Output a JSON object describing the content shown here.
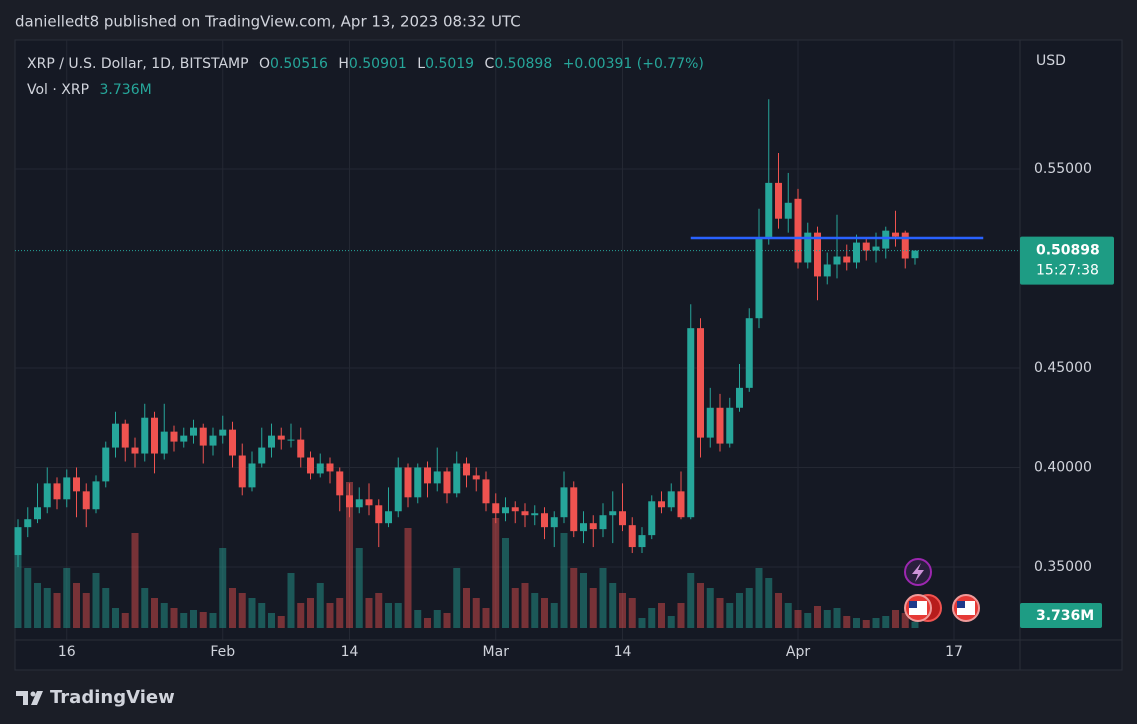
{
  "header": {
    "publisher": "danielledt8 published on TradingView.com, Apr 13, 2023 08:32 UTC",
    "brand": "TradingView"
  },
  "chart_data": {
    "type": "candlestick",
    "symbol": "XRP / U.S. Dollar, 1D, BITSTAMP",
    "ohlc_keys": [
      "O",
      "H",
      "L",
      "C"
    ],
    "change_label": "+0.00391 (+0.77%)",
    "volume_title": "Vol · XRP",
    "last_volume_label": "3.736M",
    "countdown": "15:27:38",
    "currency": "USD",
    "up_color": "#26a69a",
    "down_color": "#ef5350",
    "categories": [
      "2023-01-11",
      "2023-01-12",
      "2023-01-13",
      "2023-01-14",
      "2023-01-15",
      "2023-01-16",
      "2023-01-17",
      "2023-01-18",
      "2023-01-19",
      "2023-01-20",
      "2023-01-21",
      "2023-01-22",
      "2023-01-23",
      "2023-01-24",
      "2023-01-25",
      "2023-01-26",
      "2023-01-27",
      "2023-01-28",
      "2023-01-29",
      "2023-01-30",
      "2023-01-31",
      "2023-02-01",
      "2023-02-02",
      "2023-02-03",
      "2023-02-04",
      "2023-02-05",
      "2023-02-06",
      "2023-02-07",
      "2023-02-08",
      "2023-02-09",
      "2023-02-10",
      "2023-02-11",
      "2023-02-12",
      "2023-02-13",
      "2023-02-14",
      "2023-02-15",
      "2023-02-16",
      "2023-02-17",
      "2023-02-18",
      "2023-02-19",
      "2023-02-20",
      "2023-02-21",
      "2023-02-22",
      "2023-02-23",
      "2023-02-24",
      "2023-02-25",
      "2023-02-26",
      "2023-02-27",
      "2023-02-28",
      "2023-03-01",
      "2023-03-02",
      "2023-03-03",
      "2023-03-04",
      "2023-03-05",
      "2023-03-06",
      "2023-03-07",
      "2023-03-08",
      "2023-03-09",
      "2023-03-10",
      "2023-03-11",
      "2023-03-12",
      "2023-03-13",
      "2023-03-14",
      "2023-03-15",
      "2023-03-16",
      "2023-03-17",
      "2023-03-18",
      "2023-03-19",
      "2023-03-20",
      "2023-03-21",
      "2023-03-22",
      "2023-03-23",
      "2023-03-24",
      "2023-03-25",
      "2023-03-26",
      "2023-03-27",
      "2023-03-28",
      "2023-03-29",
      "2023-03-30",
      "2023-03-31",
      "2023-04-01",
      "2023-04-02",
      "2023-04-03",
      "2023-04-04",
      "2023-04-05",
      "2023-04-06",
      "2023-04-07",
      "2023-04-08",
      "2023-04-09",
      "2023-04-10",
      "2023-04-11",
      "2023-04-12",
      "2023-04-13"
    ],
    "open": [
      0.356,
      0.37,
      0.374,
      0.38,
      0.392,
      0.384,
      0.395,
      0.388,
      0.379,
      0.393,
      0.41,
      0.422,
      0.41,
      0.407,
      0.425,
      0.407,
      0.418,
      0.413,
      0.416,
      0.42,
      0.411,
      0.416,
      0.419,
      0.406,
      0.39,
      0.402,
      0.41,
      0.416,
      0.414,
      0.414,
      0.405,
      0.397,
      0.402,
      0.398,
      0.386,
      0.38,
      0.384,
      0.381,
      0.372,
      0.378,
      0.4,
      0.385,
      0.4,
      0.392,
      0.398,
      0.387,
      0.402,
      0.396,
      0.394,
      0.382,
      0.377,
      0.38,
      0.378,
      0.376,
      0.377,
      0.37,
      0.375,
      0.39,
      0.368,
      0.372,
      0.369,
      0.376,
      0.378,
      0.371,
      0.36,
      0.366,
      0.383,
      0.38,
      0.388,
      0.375,
      0.47,
      0.415,
      0.43,
      0.412,
      0.43,
      0.44,
      0.475,
      0.515,
      0.543,
      0.525,
      0.535,
      0.503,
      0.518,
      0.496,
      0.502,
      0.506,
      0.503,
      0.513,
      0.509,
      0.51,
      0.518,
      0.518,
      0.50516
    ],
    "high": [
      0.374,
      0.38,
      0.392,
      0.4,
      0.395,
      0.399,
      0.4,
      0.392,
      0.396,
      0.413,
      0.428,
      0.424,
      0.415,
      0.432,
      0.428,
      0.432,
      0.421,
      0.42,
      0.424,
      0.422,
      0.42,
      0.426,
      0.423,
      0.412,
      0.408,
      0.42,
      0.422,
      0.42,
      0.422,
      0.42,
      0.408,
      0.407,
      0.405,
      0.4,
      0.392,
      0.39,
      0.392,
      0.384,
      0.39,
      0.405,
      0.402,
      0.402,
      0.403,
      0.41,
      0.4,
      0.408,
      0.405,
      0.4,
      0.398,
      0.387,
      0.385,
      0.383,
      0.382,
      0.381,
      0.38,
      0.378,
      0.398,
      0.393,
      0.378,
      0.376,
      0.382,
      0.388,
      0.392,
      0.375,
      0.37,
      0.386,
      0.388,
      0.392,
      0.398,
      0.482,
      0.475,
      0.44,
      0.437,
      0.435,
      0.452,
      0.48,
      0.53,
      0.585,
      0.558,
      0.548,
      0.54,
      0.523,
      0.521,
      0.508,
      0.527,
      0.512,
      0.517,
      0.515,
      0.518,
      0.521,
      0.529,
      0.519,
      0.50901
    ],
    "low": [
      0.35,
      0.365,
      0.372,
      0.377,
      0.379,
      0.38,
      0.375,
      0.37,
      0.377,
      0.39,
      0.405,
      0.403,
      0.4,
      0.403,
      0.397,
      0.404,
      0.408,
      0.41,
      0.412,
      0.402,
      0.406,
      0.412,
      0.4,
      0.386,
      0.388,
      0.4,
      0.405,
      0.409,
      0.41,
      0.4,
      0.394,
      0.395,
      0.392,
      0.378,
      0.375,
      0.377,
      0.376,
      0.36,
      0.37,
      0.375,
      0.38,
      0.382,
      0.385,
      0.388,
      0.382,
      0.385,
      0.39,
      0.388,
      0.378,
      0.372,
      0.373,
      0.372,
      0.37,
      0.371,
      0.364,
      0.36,
      0.372,
      0.365,
      0.362,
      0.36,
      0.365,
      0.362,
      0.368,
      0.357,
      0.357,
      0.364,
      0.377,
      0.378,
      0.374,
      0.374,
      0.405,
      0.41,
      0.408,
      0.41,
      0.428,
      0.438,
      0.47,
      0.512,
      0.52,
      0.518,
      0.5,
      0.5,
      0.484,
      0.492,
      0.495,
      0.499,
      0.5,
      0.504,
      0.503,
      0.505,
      0.511,
      0.5,
      0.5019
    ],
    "close": [
      0.37,
      0.374,
      0.38,
      0.392,
      0.384,
      0.395,
      0.388,
      0.379,
      0.393,
      0.41,
      0.422,
      0.41,
      0.407,
      0.425,
      0.407,
      0.418,
      0.413,
      0.416,
      0.42,
      0.411,
      0.416,
      0.419,
      0.406,
      0.39,
      0.402,
      0.41,
      0.416,
      0.414,
      0.414,
      0.405,
      0.397,
      0.402,
      0.398,
      0.386,
      0.38,
      0.384,
      0.381,
      0.372,
      0.378,
      0.4,
      0.385,
      0.4,
      0.392,
      0.398,
      0.387,
      0.402,
      0.396,
      0.394,
      0.382,
      0.377,
      0.38,
      0.378,
      0.376,
      0.377,
      0.37,
      0.375,
      0.39,
      0.368,
      0.372,
      0.369,
      0.376,
      0.378,
      0.371,
      0.36,
      0.366,
      0.383,
      0.38,
      0.388,
      0.375,
      0.47,
      0.415,
      0.43,
      0.412,
      0.43,
      0.44,
      0.475,
      0.515,
      0.543,
      0.525,
      0.533,
      0.503,
      0.518,
      0.496,
      0.502,
      0.506,
      0.503,
      0.513,
      0.509,
      0.511,
      0.519,
      0.516,
      0.505,
      0.50898
    ],
    "volume": [
      43.8,
      36,
      27,
      24,
      21,
      36,
      27,
      21,
      33,
      24,
      12,
      9,
      57,
      24,
      18,
      15,
      12,
      9,
      10.8,
      9.6,
      9,
      48,
      24,
      21,
      18,
      15,
      9,
      7.2,
      33,
      15,
      18,
      27,
      15,
      18,
      87.6,
      48,
      18,
      21,
      15,
      15,
      60,
      10.8,
      6,
      10.8,
      9,
      36,
      24,
      18,
      12,
      66,
      54,
      24,
      27,
      21,
      18,
      15,
      57,
      36,
      33,
      24,
      36,
      27,
      21,
      18,
      6,
      12,
      15,
      7.2,
      15,
      33,
      27,
      24,
      18,
      15,
      21,
      24,
      36,
      30,
      21,
      15,
      10.8,
      9,
      13.2,
      10.8,
      12,
      7.2,
      6,
      4.8,
      6,
      7.2,
      10.8,
      9,
      3.736
    ],
    "ylim": [
      0.3133,
      0.6148
    ],
    "yticks": [
      {
        "value": 0.35,
        "label": "0.35000"
      },
      {
        "value": 0.4,
        "label": "0.40000"
      },
      {
        "value": 0.45,
        "label": "0.45000"
      },
      {
        "value": 0.55,
        "label": "0.55000"
      }
    ],
    "xticks": [
      {
        "value": "2023-01-16",
        "label": "16"
      },
      {
        "value": "2023-02-01",
        "label": "Feb"
      },
      {
        "value": "2023-02-14",
        "label": "14"
      },
      {
        "value": "2023-03-01",
        "label": "Mar"
      },
      {
        "value": "2023-03-14",
        "label": "14"
      },
      {
        "value": "2023-04-01",
        "label": "Apr"
      },
      {
        "value": "2023-04-17",
        "label": "17"
      }
    ],
    "grid": true,
    "hline": {
      "value": 0.5153,
      "start": "2023-03-21",
      "end": "2023-04-20",
      "color": "#2962ff"
    }
  }
}
